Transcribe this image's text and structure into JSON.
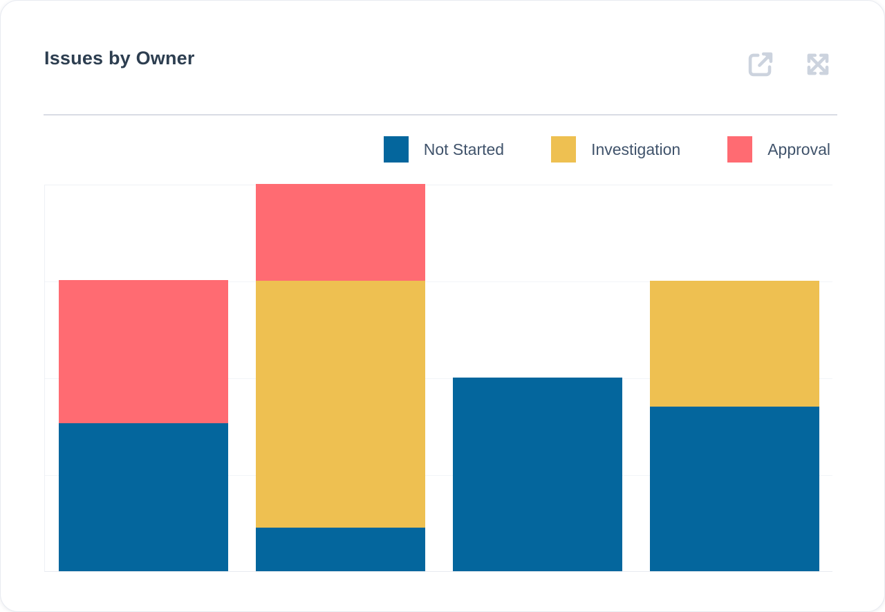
{
  "header": {
    "title": "Issues by Owner",
    "actions": [
      {
        "name": "open-report",
        "icon": "external-link-icon"
      },
      {
        "name": "expand-report",
        "icon": "expand-icon"
      }
    ],
    "icon_color": "#ccd3de"
  },
  "chart_data": {
    "type": "bar",
    "stacked": true,
    "title": "Issues by Owner",
    "categories": [
      "",
      "",
      "",
      ""
    ],
    "x_axis_labels_visible": false,
    "y_axis_labels_visible": false,
    "series": [
      {
        "name": "Not Started",
        "color": "#04669d",
        "values": [
          3.05,
          0.9,
          4.0,
          3.4
        ]
      },
      {
        "name": "Investigation",
        "color": "#eec051",
        "values": [
          0,
          5.1,
          0,
          2.6
        ]
      },
      {
        "name": "Approval",
        "color": "#ff6b72",
        "values": [
          2.95,
          2.0,
          0,
          0
        ]
      }
    ],
    "totals": [
      6,
      8,
      4,
      6
    ],
    "ylim": [
      0,
      8
    ],
    "gridline_step": 2,
    "grid": "horizontal",
    "legend_position": "top-right"
  }
}
